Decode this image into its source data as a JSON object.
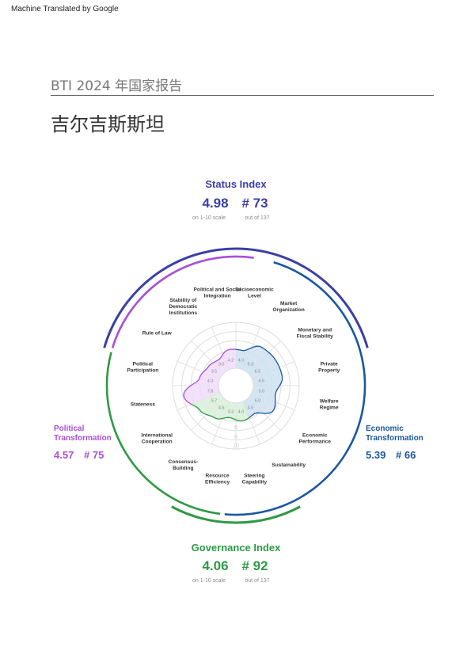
{
  "header": {
    "machine_translated": "Machine Translated by Google",
    "report_name": "BTI 2024 年国家报告",
    "country": "吉尔吉斯斯坦"
  },
  "chart_data": {
    "type": "radar",
    "scale_rings": [
      "2",
      "4",
      "6",
      "8",
      "10"
    ],
    "status_index": {
      "label": "Status Index",
      "score": "4.98",
      "rank": "# 73",
      "score_note": "on 1-10 scale",
      "rank_note": "out of 137",
      "color": "#3b3fa6"
    },
    "governance_index": {
      "label": "Governance Index",
      "score": "4.06",
      "rank": "# 92",
      "score_note": "on 1-10 scale",
      "rank_note": "out of 137",
      "color": "#2e9a44"
    },
    "political_transformation": {
      "label_lines": [
        "Political",
        "Transformation"
      ],
      "score": "4.57",
      "rank": "# 75",
      "color": "#a94fd8"
    },
    "economic_transformation": {
      "label_lines": [
        "Economic",
        "Transformation"
      ],
      "score": "5.39",
      "rank": "# 66",
      "color": "#1a57a0"
    },
    "criteria": [
      {
        "name": "Socioeconomic\nLevel",
        "value": 4.0,
        "label": "4.0",
        "group": "economic"
      },
      {
        "name": "Market\nOrganization",
        "value": 6.3,
        "label": "6.3",
        "group": "economic"
      },
      {
        "name": "Monetary and\nFiscal Stability",
        "value": 6.5,
        "label": "6.5",
        "group": "economic"
      },
      {
        "name": "Private\nProperty",
        "value": 6.5,
        "label": "6.5",
        "group": "economic"
      },
      {
        "name": "Welfare\nRegime",
        "value": 5.0,
        "label": "5.0",
        "group": "economic"
      },
      {
        "name": "Economic\nPerformance",
        "value": 6.0,
        "label": "6.0",
        "group": "economic"
      },
      {
        "name": "Sustainability",
        "value": 3.5,
        "label": "3.5",
        "group": "economic"
      },
      {
        "name": "Steering\nCapability",
        "value": 4.0,
        "label": "4.0",
        "group": "governance"
      },
      {
        "name": "Resource\nEfficiency",
        "value": 3.3,
        "label": "3.3",
        "group": "governance"
      },
      {
        "name": "Consensus-\nBuilding",
        "value": 4.6,
        "label": "4.6",
        "group": "governance"
      },
      {
        "name": "International\nCooperation",
        "value": 5.7,
        "label": "5.7",
        "group": "governance"
      },
      {
        "name": "Stateness",
        "value": 7.8,
        "label": "7.8",
        "group": "political"
      },
      {
        "name": "Political\nParticipation",
        "value": 4.3,
        "label": "4.3",
        "group": "political"
      },
      {
        "name": "Rule of Law",
        "value": 3.5,
        "label": "3.5",
        "group": "political"
      },
      {
        "name": "Stability of\nDemocratic\nInstitutions",
        "value": 3.0,
        "label": "3.0",
        "group": "political"
      },
      {
        "name": "Political and Social\nIntegration",
        "value": 4.2,
        "label": "4.2",
        "group": "political"
      }
    ]
  }
}
